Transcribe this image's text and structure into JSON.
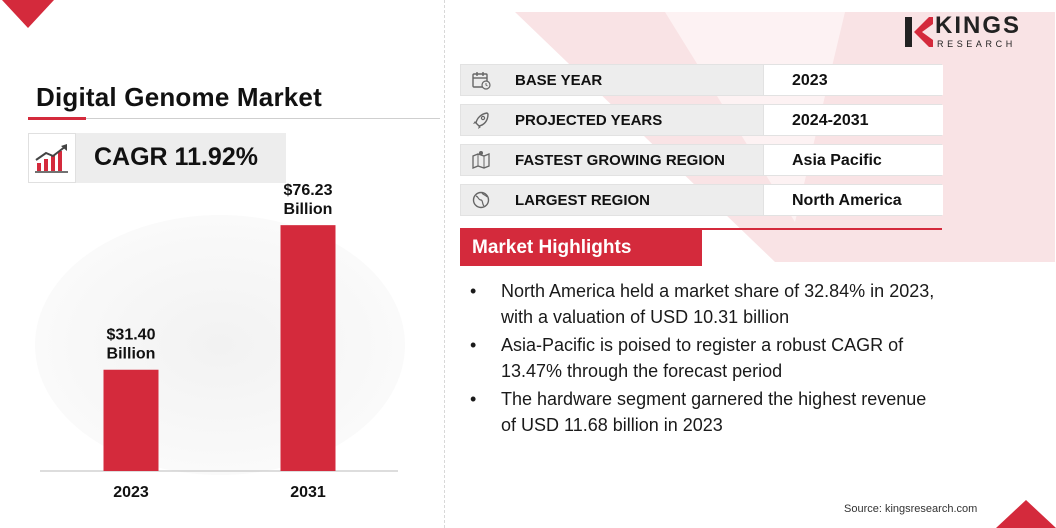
{
  "title": "Digital Genome Market",
  "cagr": "CAGR 11.92%",
  "brand": {
    "name": "KINGS",
    "tagline": "RESEARCH",
    "accent": "#d42a3c"
  },
  "chart_data": {
    "type": "bar",
    "categories": [
      "2023",
      "2031"
    ],
    "values": [
      31.4,
      76.23
    ],
    "data_labels": [
      [
        "$31.40",
        "Billion"
      ],
      [
        "$76.23",
        "Billion"
      ]
    ],
    "title": "",
    "xlabel": "",
    "ylabel": "",
    "ylim": [
      0,
      80
    ],
    "grid": false,
    "bar_color": "#d42a3c"
  },
  "info": [
    {
      "icon": "calendar-icon",
      "label": "BASE YEAR",
      "value": "2023"
    },
    {
      "icon": "rocket-icon",
      "label": "PROJECTED YEARS",
      "value": "2024-2031"
    },
    {
      "icon": "map-icon",
      "label": "FASTEST GROWING REGION",
      "value": "Asia Pacific"
    },
    {
      "icon": "globe-icon",
      "label": "LARGEST REGION",
      "value": "North America"
    }
  ],
  "highlights": {
    "title": "Market Highlights",
    "bullet": "•",
    "items": [
      [
        "North America held a market share of 32.84% in 2023,",
        "with a valuation of USD 10.31 billion"
      ],
      [
        "Asia-Pacific is poised to register a robust CAGR of",
        "13.47% through the forecast period"
      ],
      [
        "The hardware segment garnered the highest revenue",
        "of USD 11.68 billion in 2023"
      ]
    ]
  },
  "source": "Source: kingsresearch.com"
}
